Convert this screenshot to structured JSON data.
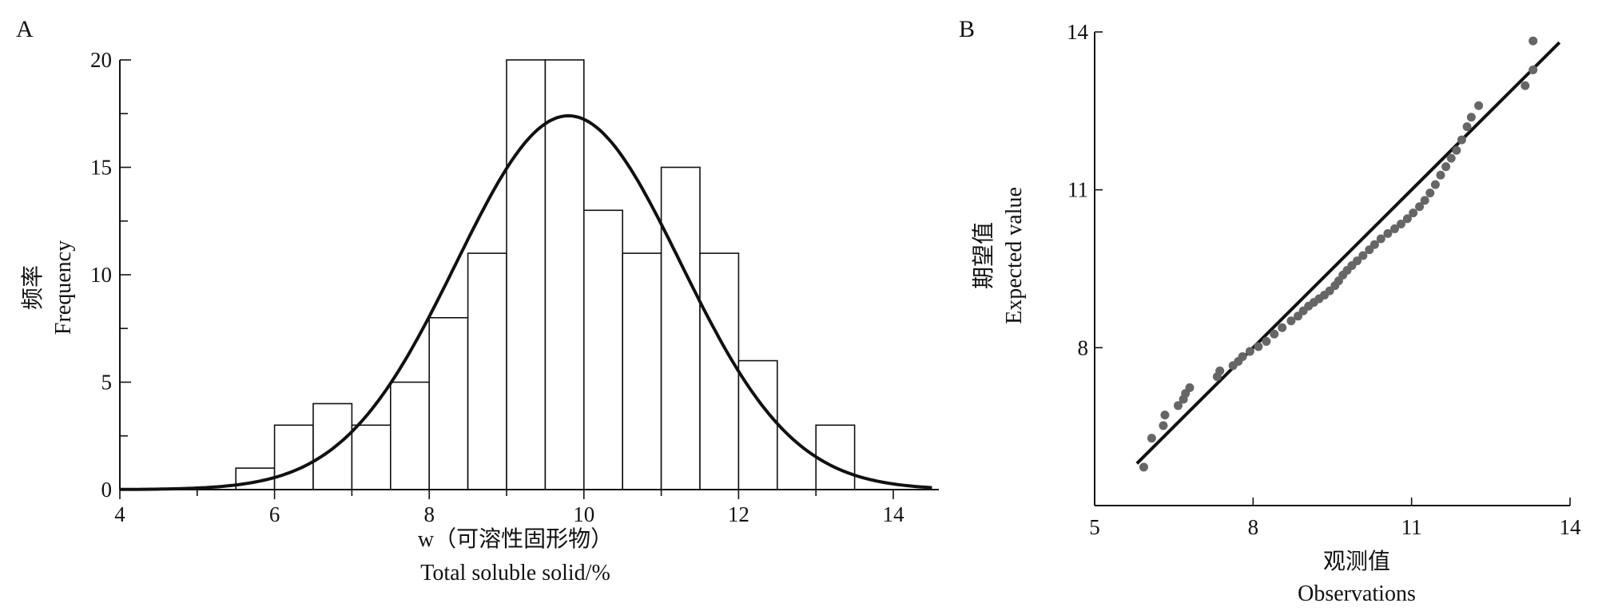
{
  "chart_data": [
    {
      "panel": "A",
      "type": "bar",
      "xlabel_cn": "w（可溶性固形物）",
      "xlabel_en": "Total soluble solid/%",
      "ylabel_cn": "频率",
      "ylabel_en": "Frequency",
      "xlim": [
        4,
        14.5
      ],
      "ylim": [
        0,
        20
      ],
      "xticks": [
        4,
        6,
        8,
        10,
        12,
        14
      ],
      "yticks": [
        0,
        5,
        10,
        15,
        20
      ],
      "bin_width": 0.5,
      "bins": [
        {
          "start": 5.5,
          "count": 1
        },
        {
          "start": 6.0,
          "count": 3
        },
        {
          "start": 6.5,
          "count": 4
        },
        {
          "start": 7.0,
          "count": 3
        },
        {
          "start": 7.5,
          "count": 5
        },
        {
          "start": 8.0,
          "count": 8
        },
        {
          "start": 8.5,
          "count": 11
        },
        {
          "start": 9.0,
          "count": 20
        },
        {
          "start": 9.5,
          "count": 20
        },
        {
          "start": 10.0,
          "count": 13
        },
        {
          "start": 10.5,
          "count": 11
        },
        {
          "start": 11.0,
          "count": 15
        },
        {
          "start": 11.5,
          "count": 11
        },
        {
          "start": 12.0,
          "count": 6
        },
        {
          "start": 13.0,
          "count": 3
        }
      ],
      "normal_curve": {
        "mean": 9.8,
        "sd": 1.45,
        "peak": 17.4
      }
    },
    {
      "panel": "B",
      "type": "scatter",
      "xlabel_cn": "观测值",
      "xlabel_en": "Observations",
      "ylabel_cn": "期望值",
      "ylabel_en": "Expected value",
      "xlim": [
        5,
        14
      ],
      "ylim": [
        5,
        14
      ],
      "xticks": [
        5,
        8,
        11,
        14
      ],
      "yticks": [
        8,
        11,
        14
      ],
      "reference_line": {
        "x": [
          5.8,
          13.8
        ],
        "y": [
          5.8,
          13.8
        ]
      },
      "points": [
        [
          5.93,
          5.73
        ],
        [
          6.08,
          6.28
        ],
        [
          6.3,
          6.52
        ],
        [
          6.33,
          6.72
        ],
        [
          6.58,
          6.9
        ],
        [
          6.68,
          7.02
        ],
        [
          6.72,
          7.13
        ],
        [
          6.8,
          7.24
        ],
        [
          7.32,
          7.45
        ],
        [
          7.37,
          7.56
        ],
        [
          7.62,
          7.66
        ],
        [
          7.72,
          7.74
        ],
        [
          7.8,
          7.83
        ],
        [
          7.94,
          7.93
        ],
        [
          8.1,
          8.02
        ],
        [
          8.25,
          8.12
        ],
        [
          8.4,
          8.26
        ],
        [
          8.55,
          8.38
        ],
        [
          8.72,
          8.51
        ],
        [
          8.85,
          8.6
        ],
        [
          8.95,
          8.7
        ],
        [
          9.05,
          8.79
        ],
        [
          9.15,
          8.86
        ],
        [
          9.25,
          8.93
        ],
        [
          9.35,
          9.0
        ],
        [
          9.45,
          9.08
        ],
        [
          9.55,
          9.18
        ],
        [
          9.62,
          9.27
        ],
        [
          9.7,
          9.38
        ],
        [
          9.78,
          9.47
        ],
        [
          9.87,
          9.56
        ],
        [
          9.97,
          9.65
        ],
        [
          10.08,
          9.75
        ],
        [
          10.2,
          9.86
        ],
        [
          10.3,
          9.96
        ],
        [
          10.42,
          10.07
        ],
        [
          10.55,
          10.17
        ],
        [
          10.68,
          10.26
        ],
        [
          10.8,
          10.35
        ],
        [
          10.92,
          10.45
        ],
        [
          11.03,
          10.56
        ],
        [
          11.15,
          10.68
        ],
        [
          11.25,
          10.8
        ],
        [
          11.35,
          10.94
        ],
        [
          11.45,
          11.1
        ],
        [
          11.55,
          11.28
        ],
        [
          11.65,
          11.44
        ],
        [
          11.75,
          11.6
        ],
        [
          11.85,
          11.75
        ],
        [
          11.95,
          11.95
        ],
        [
          12.05,
          12.2
        ],
        [
          12.13,
          12.38
        ],
        [
          12.27,
          12.6
        ],
        [
          13.15,
          12.98
        ],
        [
          13.3,
          13.28
        ],
        [
          13.3,
          13.83
        ]
      ]
    }
  ]
}
